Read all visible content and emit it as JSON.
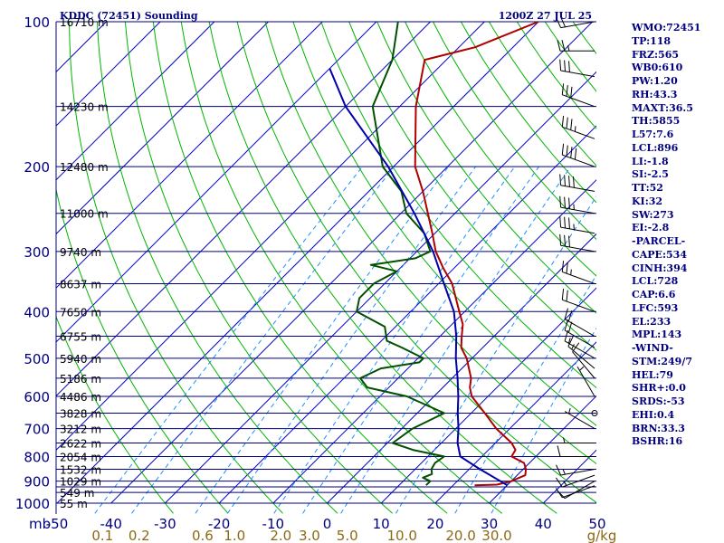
{
  "header": {
    "station": "KDDC (72451) Sounding",
    "time": "1200Z 27 JUL 25"
  },
  "indices": [
    "WMO:72451",
    "TP:118",
    "FRZ:565",
    "WB0:610",
    "PW:1.20",
    "RH:43.3",
    "MAXT:36.5",
    "TH:5855",
    "L57:7.6",
    "LCL:896",
    "LI:-1.8",
    "SI:-2.5",
    "TT:52",
    "KI:32",
    "SW:273",
    "EI:-2.8",
    "-PARCEL-",
    "CAPE:534",
    "CINH:394",
    "LCL:728",
    "CAP:6.6",
    "LFC:593",
    "EL:233",
    "MPL:143",
    "-WIND-",
    "STM:249/7",
    "HEL:79",
    "SHR+:0.0",
    "SRDS:-53",
    "EHI:0.4",
    "BRN:33.3",
    "BSHR:16"
  ],
  "colors": {
    "isobar": "#000080",
    "isotherm": "#0000c8",
    "dry_adiabat": "#00b400",
    "mixing_ratio": "#1e90ff",
    "temperature": "#b00000",
    "dewpoint": "#005000",
    "parcel": "#0000aa",
    "wind_barb": "#000000",
    "mixing_label": "#8b6914"
  },
  "chart_data": {
    "type": "skew-t",
    "y_scale": "log-pressure",
    "ylim": [
      1000,
      100
    ],
    "xlim": [
      -50,
      50
    ],
    "xlabel_unit": "mb",
    "mixing_unit": "g/kg",
    "pressure_levels": [
      100,
      150,
      200,
      250,
      300,
      350,
      400,
      450,
      500,
      550,
      600,
      650,
      700,
      750,
      800,
      850,
      900,
      925,
      950,
      1000
    ],
    "pressure_labels": [
      {
        "p": 100,
        "text": "100"
      },
      {
        "p": 200,
        "text": "200"
      },
      {
        "p": 300,
        "text": "300"
      },
      {
        "p": 400,
        "text": "400"
      },
      {
        "p": 500,
        "text": "500"
      },
      {
        "p": 600,
        "text": "600"
      },
      {
        "p": 700,
        "text": "700"
      },
      {
        "p": 800,
        "text": "800"
      },
      {
        "p": 900,
        "text": "900"
      },
      {
        "p": 1000,
        "text": "1000"
      }
    ],
    "height_labels": [
      {
        "p": 100,
        "text": "16710 m"
      },
      {
        "p": 150,
        "text": "14230 m"
      },
      {
        "p": 200,
        "text": "12480 m"
      },
      {
        "p": 250,
        "text": "11000 m"
      },
      {
        "p": 300,
        "text": "9740 m"
      },
      {
        "p": 350,
        "text": "8637 m"
      },
      {
        "p": 400,
        "text": "7650 m"
      },
      {
        "p": 450,
        "text": "6755 m"
      },
      {
        "p": 500,
        "text": "5940 m"
      },
      {
        "p": 550,
        "text": "5186 m"
      },
      {
        "p": 600,
        "text": "4486 m"
      },
      {
        "p": 650,
        "text": "3828 m"
      },
      {
        "p": 700,
        "text": "3212 m"
      },
      {
        "p": 750,
        "text": "2622 m"
      },
      {
        "p": 800,
        "text": "2054 m"
      },
      {
        "p": 850,
        "text": "1532 m"
      },
      {
        "p": 900,
        "text": "1029 m"
      },
      {
        "p": 950,
        "text": "549 m"
      },
      {
        "p": 1000,
        "text": "55 m"
      }
    ],
    "temp_ticks": [
      "-50",
      "-40",
      "-30",
      "-20",
      "-10",
      "0",
      "10",
      "20",
      "30",
      "40",
      "50"
    ],
    "mixing_ticks": [
      "0.1",
      "0.2",
      "0.6",
      "1.0",
      "2.0",
      "3.0",
      "5.0",
      "10.0",
      "20.0",
      "30.0"
    ],
    "mixing_values": [
      0.1,
      0.2,
      0.6,
      1.0,
      2.0,
      3.0,
      5.0,
      10.0,
      20.0,
      30.0
    ],
    "series": [
      {
        "name": "temperature",
        "points": [
          {
            "p": 918,
            "t": 24.0
          },
          {
            "p": 915,
            "t": 28.0
          },
          {
            "p": 900,
            "t": 30.0
          },
          {
            "p": 875,
            "t": 31.5
          },
          {
            "p": 850,
            "t": 30.5
          },
          {
            "p": 825,
            "t": 29.0
          },
          {
            "p": 800,
            "t": 25.5
          },
          {
            "p": 775,
            "t": 25.0
          },
          {
            "p": 750,
            "t": 23.0
          },
          {
            "p": 700,
            "t": 17.5
          },
          {
            "p": 650,
            "t": 12.5
          },
          {
            "p": 600,
            "t": 7.0
          },
          {
            "p": 575,
            "t": 5.0
          },
          {
            "p": 550,
            "t": 3.5
          },
          {
            "p": 500,
            "t": -1.0
          },
          {
            "p": 475,
            "t": -4.0
          },
          {
            "p": 450,
            "t": -6.0
          },
          {
            "p": 425,
            "t": -8.0
          },
          {
            "p": 400,
            "t": -11.0
          },
          {
            "p": 350,
            "t": -17.5
          },
          {
            "p": 325,
            "t": -22.0
          },
          {
            "p": 300,
            "t": -26.5
          },
          {
            "p": 275,
            "t": -30.5
          },
          {
            "p": 250,
            "t": -35.0
          },
          {
            "p": 225,
            "t": -40.0
          },
          {
            "p": 200,
            "t": -46.0
          },
          {
            "p": 150,
            "t": -57.0
          },
          {
            "p": 120,
            "t": -64.0
          },
          {
            "p": 113,
            "t": -57.0
          },
          {
            "p": 100,
            "t": -50.0
          }
        ]
      },
      {
        "name": "dewpoint",
        "points": [
          {
            "p": 918,
            "t": 15.0
          },
          {
            "p": 900,
            "t": 15.0
          },
          {
            "p": 885,
            "t": 13.0
          },
          {
            "p": 870,
            "t": 14.0
          },
          {
            "p": 850,
            "t": 13.0
          },
          {
            "p": 825,
            "t": 12.5
          },
          {
            "p": 800,
            "t": 13.0
          },
          {
            "p": 775,
            "t": 6.0
          },
          {
            "p": 750,
            "t": 1.0
          },
          {
            "p": 700,
            "t": 2.0
          },
          {
            "p": 650,
            "t": 5.0
          },
          {
            "p": 600,
            "t": -5.0
          },
          {
            "p": 575,
            "t": -14.0
          },
          {
            "p": 550,
            "t": -17.0
          },
          {
            "p": 525,
            "t": -15.0
          },
          {
            "p": 510,
            "t": -9.0
          },
          {
            "p": 500,
            "t": -9.0
          },
          {
            "p": 475,
            "t": -15.0
          },
          {
            "p": 460,
            "t": -19.0
          },
          {
            "p": 430,
            "t": -22.0
          },
          {
            "p": 400,
            "t": -30.0
          },
          {
            "p": 375,
            "t": -32.0
          },
          {
            "p": 350,
            "t": -32.0
          },
          {
            "p": 330,
            "t": -30.0
          },
          {
            "p": 320,
            "t": -36.0
          },
          {
            "p": 310,
            "t": -29.0
          },
          {
            "p": 300,
            "t": -27.5
          },
          {
            "p": 275,
            "t": -32.0
          },
          {
            "p": 250,
            "t": -39.0
          },
          {
            "p": 225,
            "t": -44.0
          },
          {
            "p": 200,
            "t": -52.0
          },
          {
            "p": 150,
            "t": -65.0
          },
          {
            "p": 120,
            "t": -70.0
          },
          {
            "p": 100,
            "t": -76.0
          }
        ]
      },
      {
        "name": "parcel",
        "points": [
          {
            "p": 918,
            "t": 30.0
          },
          {
            "p": 900,
            "t": 28.0
          },
          {
            "p": 850,
            "t": 22.0
          },
          {
            "p": 800,
            "t": 16.0
          },
          {
            "p": 750,
            "t": 13.0
          },
          {
            "p": 700,
            "t": 10.5
          },
          {
            "p": 650,
            "t": 7.5
          },
          {
            "p": 600,
            "t": 4.5
          },
          {
            "p": 550,
            "t": 1.0
          },
          {
            "p": 500,
            "t": -3.0
          },
          {
            "p": 450,
            "t": -7.0
          },
          {
            "p": 400,
            "t": -12.0
          },
          {
            "p": 350,
            "t": -19.0
          },
          {
            "p": 300,
            "t": -27.0
          },
          {
            "p": 250,
            "t": -37.5
          },
          {
            "p": 200,
            "t": -51.0
          },
          {
            "p": 150,
            "t": -70.0
          },
          {
            "p": 125,
            "t": -80.0
          }
        ]
      }
    ],
    "wind_barbs": [
      {
        "p": 920,
        "dir": 250,
        "spd": 10
      },
      {
        "p": 900,
        "dir": 240,
        "spd": 10
      },
      {
        "p": 875,
        "dir": 250,
        "spd": 15
      },
      {
        "p": 850,
        "dir": 260,
        "spd": 15
      },
      {
        "p": 800,
        "dir": 270,
        "spd": 10
      },
      {
        "p": 750,
        "dir": 270,
        "spd": 5
      },
      {
        "p": 700,
        "dir": 300,
        "spd": 5
      },
      {
        "p": 650,
        "dir": 0,
        "spd": 0
      },
      {
        "p": 600,
        "dir": 330,
        "spd": 5
      },
      {
        "p": 550,
        "dir": 320,
        "spd": 10
      },
      {
        "p": 525,
        "dir": 310,
        "spd": 15
      },
      {
        "p": 500,
        "dir": 300,
        "spd": 15
      },
      {
        "p": 475,
        "dir": 300,
        "spd": 20
      },
      {
        "p": 450,
        "dir": 300,
        "spd": 20
      },
      {
        "p": 400,
        "dir": 290,
        "spd": 20
      },
      {
        "p": 350,
        "dir": 290,
        "spd": 25
      },
      {
        "p": 300,
        "dir": 280,
        "spd": 30
      },
      {
        "p": 275,
        "dir": 280,
        "spd": 35
      },
      {
        "p": 250,
        "dir": 280,
        "spd": 35
      },
      {
        "p": 225,
        "dir": 280,
        "spd": 40
      },
      {
        "p": 200,
        "dir": 290,
        "spd": 40
      },
      {
        "p": 175,
        "dir": 290,
        "spd": 35
      },
      {
        "p": 150,
        "dir": 290,
        "spd": 30
      },
      {
        "p": 130,
        "dir": 280,
        "spd": 30
      },
      {
        "p": 115,
        "dir": 270,
        "spd": 25
      },
      {
        "p": 100,
        "dir": 260,
        "spd": 20
      }
    ]
  }
}
